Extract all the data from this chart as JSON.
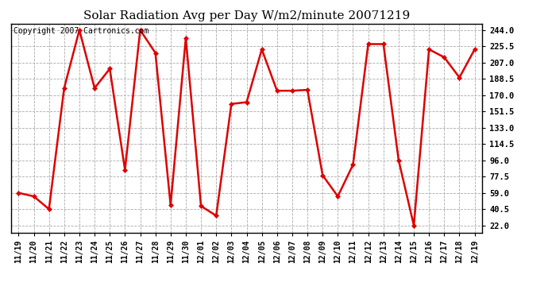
{
  "title": "Solar Radiation Avg per Day W/m2/minute 20071219",
  "copyright": "Copyright 2007 Cartronics.com",
  "x_labels": [
    "11/19",
    "11/20",
    "11/21",
    "11/22",
    "11/23",
    "11/24",
    "11/25",
    "11/26",
    "11/27",
    "11/28",
    "11/29",
    "11/30",
    "12/01",
    "12/02",
    "12/03",
    "12/04",
    "12/05",
    "12/06",
    "12/07",
    "12/08",
    "12/09",
    "12/10",
    "12/11",
    "12/12",
    "12/13",
    "12/14",
    "12/15",
    "12/16",
    "12/17",
    "12/18",
    "12/19"
  ],
  "y_values": [
    59.0,
    55.0,
    40.5,
    178.0,
    244.0,
    178.0,
    200.0,
    85.0,
    244.0,
    218.0,
    45.0,
    235.0,
    44.0,
    33.0,
    160.0,
    162.0,
    222.0,
    175.0,
    175.0,
    176.0,
    79.0,
    55.0,
    91.0,
    228.0,
    228.0,
    96.0,
    22.0,
    222.0,
    213.0,
    190.0,
    222.0
  ],
  "line_color": "#dd0000",
  "marker": "D",
  "marker_color": "#dd0000",
  "marker_size": 3,
  "background_color": "#ffffff",
  "plot_bg_color": "#ffffff",
  "grid_color": "#aaaaaa",
  "y_ticks": [
    22.0,
    40.5,
    59.0,
    77.5,
    96.0,
    114.5,
    133.0,
    151.5,
    170.0,
    188.5,
    207.0,
    225.5,
    244.0
  ],
  "ylim": [
    14.0,
    251.0
  ],
  "title_fontsize": 11,
  "copyright_fontsize": 7,
  "tick_fontsize": 7.5,
  "xtick_fontsize": 7
}
